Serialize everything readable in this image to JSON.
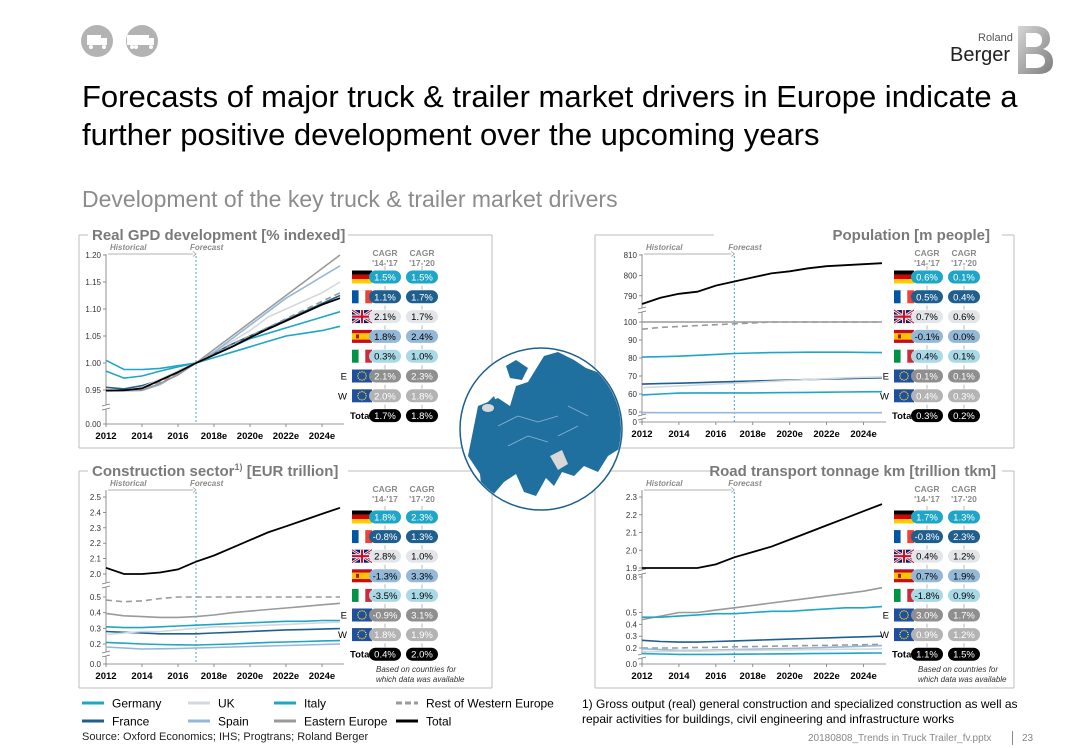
{
  "header": {
    "logo_small": "Roland",
    "logo_big": "Berger",
    "title_line1": "Forecasts of major truck & trailer market drivers in Europe indicate a",
    "title_line2": "further positive development over the upcoming years",
    "subtitle": "Development of the key truck & trailer market drivers"
  },
  "common": {
    "historical": "Historical",
    "forecast": "Forecast",
    "cagr1_l1": "CAGR",
    "cagr1_l2": "'14-'17",
    "cagr2_l1": "CAGR",
    "cagr2_l2": "'17-'20",
    "based_on_l1": "Based on countries for",
    "based_on_l2": "which data was available",
    "x_ticks": [
      "2012",
      "2014",
      "2016",
      "2018e",
      "2020e",
      "2022e",
      "2024e"
    ],
    "row_labels": [
      "",
      "",
      "",
      "",
      "",
      "E",
      "W",
      "Total"
    ]
  },
  "legend": {
    "items": [
      {
        "name": "Germany",
        "color": "#1fa6c6",
        "dash": false
      },
      {
        "name": "UK",
        "color": "#d4d8dc",
        "dash": false
      },
      {
        "name": "Italy",
        "color": "#1fa6c6",
        "dash": false
      },
      {
        "name": "Rest of Western Europe",
        "color": "#9a9a9a",
        "dash": true
      },
      {
        "name": "France",
        "color": "#1f5f8e",
        "dash": false
      },
      {
        "name": "Spain",
        "color": "#94b8d8",
        "dash": false
      },
      {
        "name": "Eastern Europe",
        "color": "#9a9a9a",
        "dash": false
      },
      {
        "name": "Total",
        "color": "#000000",
        "dash": false
      }
    ]
  },
  "footnote": {
    "line1": "1) Gross output (real) general construction and specialized construction as well as",
    "line2": "repair activities for buildings, civil engineering and infrastructure works"
  },
  "footer": {
    "source": "Source: Oxford Economics; IHS; Progtrans; Roland Berger",
    "file": "20180808_Trends in Truck Trailer_fv.pptx",
    "page": "23"
  },
  "chart_data": [
    {
      "type": "line",
      "title": "Real GPD development [% indexed]",
      "x": [
        2012,
        2013,
        2014,
        2015,
        2016,
        2017,
        2018,
        2019,
        2020,
        2021,
        2022,
        2023,
        2024,
        2025
      ],
      "y_ticks": [
        "1.20",
        "1.15",
        "1.10",
        "1.05",
        "1.00",
        "0.95",
        "0.00"
      ],
      "series": [
        {
          "name": "Germany",
          "values": [
            0.985,
            0.972,
            0.976,
            0.985,
            0.993,
            1.0,
            1.015,
            1.03,
            1.045,
            1.055,
            1.065,
            1.075,
            1.085,
            1.095
          ]
        },
        {
          "name": "France",
          "values": [
            0.955,
            0.952,
            0.958,
            0.968,
            0.985,
            1.0,
            1.018,
            1.035,
            1.05,
            1.065,
            1.08,
            1.095,
            1.11,
            1.125
          ]
        },
        {
          "name": "UK",
          "values": [
            0.93,
            0.94,
            0.955,
            0.97,
            0.985,
            1.0,
            1.02,
            1.04,
            1.06,
            1.085,
            1.1,
            1.115,
            1.13,
            1.15
          ]
        },
        {
          "name": "Spain",
          "values": [
            0.94,
            0.93,
            0.94,
            0.96,
            0.98,
            1.0,
            1.02,
            1.045,
            1.07,
            1.095,
            1.12,
            1.14,
            1.16,
            1.18
          ]
        },
        {
          "name": "Italy",
          "values": [
            1.005,
            0.988,
            0.988,
            0.99,
            0.995,
            1.0,
            1.01,
            1.02,
            1.03,
            1.04,
            1.05,
            1.055,
            1.06,
            1.068
          ]
        },
        {
          "name": "Eastern Europe",
          "values": [
            0.925,
            0.93,
            0.945,
            0.962,
            0.978,
            1.0,
            1.025,
            1.05,
            1.075,
            1.1,
            1.125,
            1.15,
            1.175,
            1.2
          ]
        },
        {
          "name": "Rest of Western Europe",
          "values": [
            0.94,
            0.945,
            0.953,
            0.965,
            0.98,
            1.0,
            1.017,
            1.034,
            1.05,
            1.066,
            1.082,
            1.098,
            1.114,
            1.13
          ]
        },
        {
          "name": "Total",
          "values": [
            0.935,
            0.942,
            0.953,
            0.968,
            0.983,
            1.0,
            1.015,
            1.03,
            1.047,
            1.063,
            1.078,
            1.093,
            1.108,
            1.12
          ]
        }
      ],
      "cagr": [
        {
          "a": "1.5%",
          "b": "1.5%"
        },
        {
          "a": "1.1%",
          "b": "1.7%"
        },
        {
          "a": "2.1%",
          "b": "1.7%"
        },
        {
          "a": "1.8%",
          "b": "2.4%"
        },
        {
          "a": "0.3%",
          "b": "1.0%"
        },
        {
          "a": "2.1%",
          "b": "2.3%"
        },
        {
          "a": "2.0%",
          "b": "1.8%"
        },
        {
          "a": "1.7%",
          "b": "1.8%"
        }
      ]
    },
    {
      "type": "line",
      "title": "Population [m people]",
      "x": [
        2012,
        2013,
        2014,
        2015,
        2016,
        2017,
        2018,
        2019,
        2020,
        2021,
        2022,
        2023,
        2024,
        2025
      ],
      "y_ticks": [
        "810",
        "800",
        "790",
        "100",
        "90",
        "80",
        "70",
        "60",
        "50",
        "0"
      ],
      "series": [
        {
          "name": "Total",
          "values": [
            786,
            789,
            791,
            792,
            795,
            797,
            799,
            801,
            802,
            803.5,
            804.5,
            805,
            805.5,
            806
          ]
        },
        {
          "name": "Eastern Europe",
          "values": [
            103.5,
            104.5,
            103.5,
            104,
            104.5,
            105,
            105,
            105,
            105,
            105,
            105,
            104.5,
            104.5,
            104
          ]
        },
        {
          "name": "Rest of Western Europe",
          "values": [
            96,
            97,
            97.5,
            98,
            98.5,
            99,
            99.5,
            100,
            100.5,
            101,
            101.5,
            102,
            102.5,
            103
          ]
        },
        {
          "name": "Germany",
          "values": [
            80.5,
            80.7,
            81,
            81.5,
            82,
            82.5,
            82.8,
            83,
            83.1,
            83.2,
            83.2,
            83.2,
            83.1,
            83
          ]
        },
        {
          "name": "France",
          "values": [
            65.5,
            65.8,
            66,
            66.3,
            66.6,
            66.9,
            67.2,
            67.5,
            67.8,
            68,
            68.3,
            68.5,
            68.8,
            69
          ]
        },
        {
          "name": "Italy",
          "values": [
            59.5,
            60,
            60.5,
            60.6,
            60.6,
            60.6,
            60.6,
            60.7,
            60.8,
            60.9,
            61,
            61.1,
            61.2,
            61.3
          ]
        },
        {
          "name": "UK",
          "values": [
            63.5,
            64,
            64.5,
            65,
            65.5,
            66,
            66.5,
            67,
            67.5,
            68,
            68.5,
            69,
            69.3,
            69.5
          ]
        },
        {
          "name": "Spain",
          "values": [
            46.8,
            46.6,
            46.5,
            46.4,
            46.4,
            46.5,
            46.5,
            46.5,
            46.5,
            46.5,
            46.4,
            46.4,
            46.3,
            46.3
          ]
        }
      ],
      "cagr": [
        {
          "a": "0.6%",
          "b": "0.1%"
        },
        {
          "a": "0.5%",
          "b": "0.4%"
        },
        {
          "a": "0.7%",
          "b": "0.6%"
        },
        {
          "a": "-0.1%",
          "b": "0.0%"
        },
        {
          "a": "0.4%",
          "b": "0.1%"
        },
        {
          "a": "0.1%",
          "b": "0.1%"
        },
        {
          "a": "0.4%",
          "b": "0.3%"
        },
        {
          "a": "0.3%",
          "b": "0.2%"
        }
      ]
    },
    {
      "type": "line",
      "title_main": "Construction sector",
      "title_sup": "1)",
      "title_unit": " [EUR trillion]",
      "x": [
        2012,
        2013,
        2014,
        2015,
        2016,
        2017,
        2018,
        2019,
        2020,
        2021,
        2022,
        2023,
        2024,
        2025
      ],
      "y_ticks": [
        "2.5",
        "2.4",
        "2.3",
        "2.2",
        "2.1",
        "2.0",
        "0.5",
        "0.4",
        "0.3",
        "0.2",
        "0.0"
      ],
      "series": [
        {
          "name": "Total",
          "values": [
            2.04,
            1.99,
            2.0,
            2.01,
            2.03,
            2.08,
            2.12,
            2.17,
            2.22,
            2.27,
            2.31,
            2.35,
            2.39,
            2.43
          ]
        },
        {
          "name": "Rest of Western Europe",
          "values": [
            0.48,
            0.47,
            0.475,
            0.49,
            0.5,
            0.51,
            0.52,
            0.53,
            0.54,
            0.55,
            0.555,
            0.56,
            0.565,
            0.57
          ]
        },
        {
          "name": "Eastern Europe",
          "values": [
            0.395,
            0.38,
            0.375,
            0.37,
            0.37,
            0.375,
            0.385,
            0.4,
            0.41,
            0.42,
            0.43,
            0.44,
            0.45,
            0.46
          ]
        },
        {
          "name": "Germany",
          "values": [
            0.31,
            0.305,
            0.305,
            0.31,
            0.315,
            0.32,
            0.325,
            0.33,
            0.335,
            0.34,
            0.345,
            0.345,
            0.35,
            0.35
          ]
        },
        {
          "name": "France",
          "values": [
            0.28,
            0.275,
            0.27,
            0.265,
            0.265,
            0.265,
            0.27,
            0.275,
            0.28,
            0.285,
            0.29,
            0.292,
            0.295,
            0.298
          ]
        },
        {
          "name": "UK",
          "values": [
            0.26,
            0.27,
            0.28,
            0.28,
            0.29,
            0.3,
            0.31,
            0.31,
            0.315,
            0.32,
            0.325,
            0.33,
            0.335,
            0.34
          ]
        },
        {
          "name": "Italy",
          "values": [
            0.21,
            0.205,
            0.2,
            0.195,
            0.192,
            0.19,
            0.195,
            0.2,
            0.205,
            0.21,
            0.213,
            0.216,
            0.22,
            0.222
          ]
        },
        {
          "name": "Spain",
          "values": [
            0.17,
            0.16,
            0.15,
            0.152,
            0.155,
            0.16,
            0.165,
            0.17,
            0.175,
            0.18,
            0.185,
            0.19,
            0.195,
            0.2
          ]
        }
      ],
      "cagr": [
        {
          "a": "1.8%",
          "b": "2.3%"
        },
        {
          "a": "-0.8%",
          "b": "1.3%"
        },
        {
          "a": "2.8%",
          "b": "1.0%"
        },
        {
          "a": "-1.3%",
          "b": "3.3%"
        },
        {
          "a": "-3.5%",
          "b": "1.9%"
        },
        {
          "a": "-0.9%",
          "b": "3.1%"
        },
        {
          "a": "1.8%",
          "b": "1.9%"
        },
        {
          "a": "0.4%",
          "b": "2.0%"
        }
      ]
    },
    {
      "type": "line",
      "title": "Road transport tonnage km [trillion tkm]",
      "x": [
        2012,
        2013,
        2014,
        2015,
        2016,
        2017,
        2018,
        2019,
        2020,
        2021,
        2022,
        2023,
        2024,
        2025
      ],
      "y_ticks": [
        "2.3",
        "2.2",
        "2.1",
        "2.0",
        "1.9",
        "0.8",
        "0.5",
        "0.4",
        "0.3",
        "0.2",
        "0.0"
      ],
      "series": [
        {
          "name": "Total",
          "values": [
            1.88,
            1.885,
            1.89,
            1.9,
            1.92,
            1.96,
            1.99,
            2.02,
            2.06,
            2.1,
            2.14,
            2.18,
            2.22,
            2.26
          ]
        },
        {
          "name": "Eastern Europe",
          "values": [
            0.44,
            0.47,
            0.5,
            0.5,
            0.52,
            0.54,
            0.56,
            0.58,
            0.6,
            0.62,
            0.64,
            0.66,
            0.68,
            0.71
          ]
        },
        {
          "name": "Germany",
          "values": [
            0.46,
            0.46,
            0.47,
            0.48,
            0.49,
            0.49,
            0.5,
            0.51,
            0.51,
            0.52,
            0.53,
            0.54,
            0.54,
            0.55
          ]
        },
        {
          "name": "France",
          "values": [
            0.265,
            0.255,
            0.25,
            0.25,
            0.255,
            0.26,
            0.265,
            0.27,
            0.275,
            0.28,
            0.285,
            0.29,
            0.295,
            0.3
          ]
        },
        {
          "name": "Rest of Western Europe",
          "values": [
            0.2,
            0.2,
            0.2,
            0.205,
            0.205,
            0.21,
            0.212,
            0.215,
            0.218,
            0.22,
            0.222,
            0.225,
            0.228,
            0.23
          ]
        },
        {
          "name": "Spain",
          "values": [
            0.19,
            0.18,
            0.17,
            0.17,
            0.175,
            0.18,
            0.185,
            0.19,
            0.195,
            0.2,
            0.205,
            0.21,
            0.215,
            0.22
          ]
        },
        {
          "name": "UK",
          "values": [
            0.155,
            0.155,
            0.16,
            0.16,
            0.165,
            0.17,
            0.17,
            0.175,
            0.175,
            0.18,
            0.18,
            0.185,
            0.185,
            0.19
          ]
        },
        {
          "name": "Italy",
          "values": [
            0.13,
            0.125,
            0.12,
            0.12,
            0.12,
            0.122,
            0.124,
            0.126,
            0.128,
            0.13,
            0.132,
            0.134,
            0.136,
            0.138
          ]
        }
      ],
      "cagr": [
        {
          "a": "1.7%",
          "b": "1.3%"
        },
        {
          "a": "-0.8%",
          "b": "2.3%"
        },
        {
          "a": "0.4%",
          "b": "1.2%"
        },
        {
          "a": "0.7%",
          "b": "1.9%"
        },
        {
          "a": "-1.8%",
          "b": "0.9%"
        },
        {
          "a": "3.0%",
          "b": "1.7%"
        },
        {
          "a": "0.9%",
          "b": "1.2%"
        },
        {
          "a": "1.1%",
          "b": "1.5%"
        }
      ]
    }
  ]
}
